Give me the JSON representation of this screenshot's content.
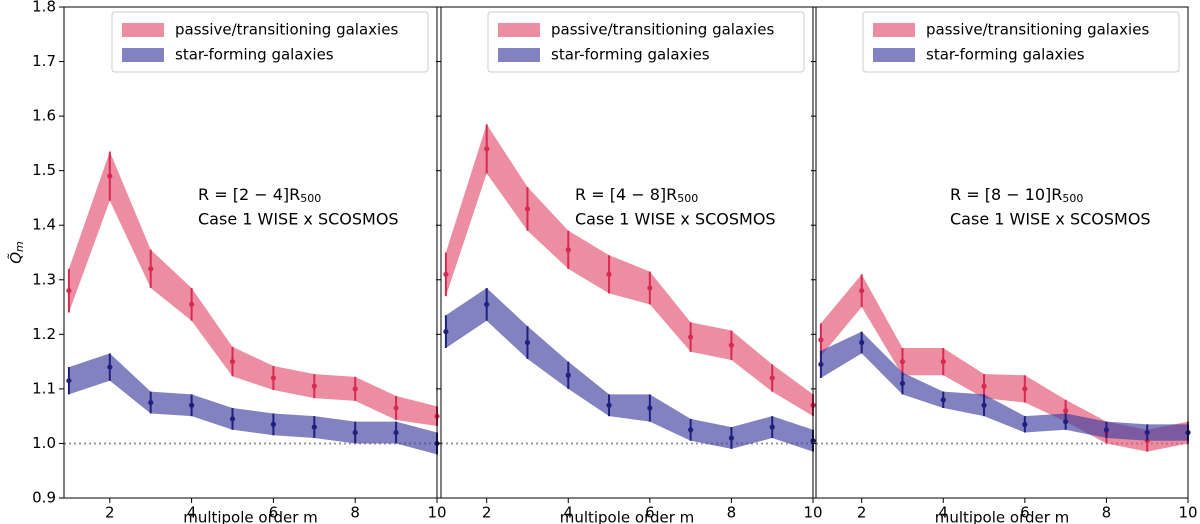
{
  "chart_data": [
    {
      "type": "line",
      "xlabel": "multipole order m",
      "ylabel": [
        "Q̃",
        "m"
      ],
      "xlim": [
        0.88,
        10
      ],
      "ylim": [
        0.9,
        1.8
      ],
      "xticks": [
        2,
        4,
        6,
        8,
        10
      ],
      "yticks": [
        0.9,
        {
          "value": 1.0,
          "label": "1.0"
        },
        1.1,
        1.2,
        1.3,
        1.4,
        1.5,
        1.6,
        1.7,
        1.8
      ],
      "hline": 1.0,
      "legend": "upper right",
      "annotation": [
        "R = [2 − 4]R",
        "500"
      ],
      "annotation2": "Case 1 WISE x SCOSMOS",
      "x": [
        1,
        2,
        3,
        4,
        5,
        6,
        7,
        8,
        9,
        10
      ],
      "series": [
        {
          "name": "passive/transitioning galaxies",
          "color": "#e4506e",
          "point_color": "#d62a52",
          "values": [
            1.28,
            1.49,
            1.32,
            1.255,
            1.15,
            1.12,
            1.105,
            1.1,
            1.065,
            1.05
          ],
          "errors": [
            0.04,
            0.045,
            0.035,
            0.03,
            0.027,
            0.022,
            0.022,
            0.022,
            0.022,
            0.018
          ]
        },
        {
          "name": "star-forming galaxies",
          "color": "#3f3fa0",
          "point_color": "#1f1f80",
          "values": [
            1.115,
            1.14,
            1.075,
            1.07,
            1.045,
            1.035,
            1.03,
            1.02,
            1.02,
            1.0
          ],
          "errors": [
            0.025,
            0.025,
            0.02,
            0.02,
            0.02,
            0.02,
            0.02,
            0.02,
            0.02,
            0.02
          ]
        }
      ]
    },
    {
      "type": "line",
      "xlabel": "multipole order m",
      "xlim": [
        0.88,
        10
      ],
      "ylim": [
        0.9,
        1.8
      ],
      "xticks": [
        2,
        4,
        6,
        8,
        10
      ],
      "hline": 1.0,
      "legend": "upper right",
      "annotation": [
        "R = [4 − 8]R",
        "500"
      ],
      "annotation2": "Case 1 WISE x SCOSMOS",
      "x": [
        1,
        2,
        3,
        4,
        5,
        6,
        7,
        8,
        9,
        10
      ],
      "series": [
        {
          "name": "passive/transitioning galaxies",
          "color": "#e4506e",
          "point_color": "#d62a52",
          "values": [
            1.31,
            1.54,
            1.43,
            1.355,
            1.31,
            1.285,
            1.195,
            1.18,
            1.12,
            1.07
          ],
          "errors": [
            0.04,
            0.045,
            0.04,
            0.035,
            0.035,
            0.03,
            0.027,
            0.027,
            0.025,
            0.02
          ]
        },
        {
          "name": "star-forming galaxies",
          "color": "#3f3fa0",
          "point_color": "#1f1f80",
          "values": [
            1.205,
            1.255,
            1.185,
            1.125,
            1.07,
            1.065,
            1.025,
            1.01,
            1.03,
            1.005
          ],
          "errors": [
            0.03,
            0.03,
            0.03,
            0.025,
            0.02,
            0.025,
            0.02,
            0.02,
            0.02,
            0.02
          ]
        }
      ]
    },
    {
      "type": "line",
      "xlabel": "multipole order m",
      "xlim": [
        0.88,
        10
      ],
      "ylim": [
        0.9,
        1.8
      ],
      "xticks": [
        2,
        4,
        6,
        8,
        10
      ],
      "hline": 1.0,
      "legend": "upper right",
      "annotation": [
        "R = [8 − 10]R",
        "500"
      ],
      "annotation2": "Case 1 WISE x SCOSMOS",
      "x": [
        1,
        2,
        3,
        4,
        5,
        6,
        7,
        8,
        9,
        10
      ],
      "series": [
        {
          "name": "passive/transitioning galaxies",
          "color": "#e4506e",
          "point_color": "#d62a52",
          "values": [
            1.19,
            1.28,
            1.15,
            1.15,
            1.105,
            1.1,
            1.06,
            1.02,
            1.005,
            1.02
          ],
          "errors": [
            0.03,
            0.03,
            0.025,
            0.025,
            0.022,
            0.025,
            0.02,
            0.02,
            0.02,
            0.02
          ]
        },
        {
          "name": "star-forming galaxies",
          "color": "#3f3fa0",
          "point_color": "#1f1f80",
          "values": [
            1.145,
            1.185,
            1.11,
            1.08,
            1.07,
            1.035,
            1.04,
            1.025,
            1.02,
            1.02
          ],
          "errors": [
            0.025,
            0.02,
            0.02,
            0.015,
            0.02,
            0.015,
            0.015,
            0.015,
            0.015,
            0.015
          ]
        }
      ]
    }
  ]
}
